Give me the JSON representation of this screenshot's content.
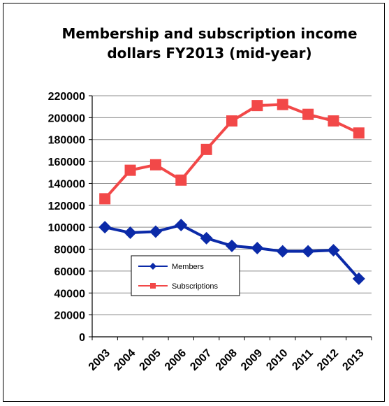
{
  "chart_data": {
    "type": "line",
    "title": "Membership and subscription income dollars FY2013 (mid-year)",
    "title_lines": [
      "Membership and subscription income",
      "dollars FY2013 (mid-year)"
    ],
    "categories": [
      "2003",
      "2004",
      "2005",
      "2006",
      "2007",
      "2008",
      "2009",
      "2010",
      "2011",
      "2012",
      "2013"
    ],
    "series": [
      {
        "name": "Members",
        "color": "#0b2aa8",
        "marker": "diamond",
        "values": [
          100000,
          95000,
          96000,
          102000,
          90000,
          83000,
          81000,
          78000,
          78000,
          79000,
          53000
        ]
      },
      {
        "name": "Subscriptions",
        "color": "#f24848",
        "marker": "square",
        "values": [
          126000,
          152000,
          157000,
          143000,
          171000,
          197000,
          211000,
          212000,
          203000,
          197000,
          186000
        ]
      }
    ],
    "ylim": [
      0,
      220000
    ],
    "ytick_step": 20000,
    "xlabel": "",
    "ylabel": "",
    "grid": "horizontal",
    "legend_position": "lower-left-inside"
  }
}
